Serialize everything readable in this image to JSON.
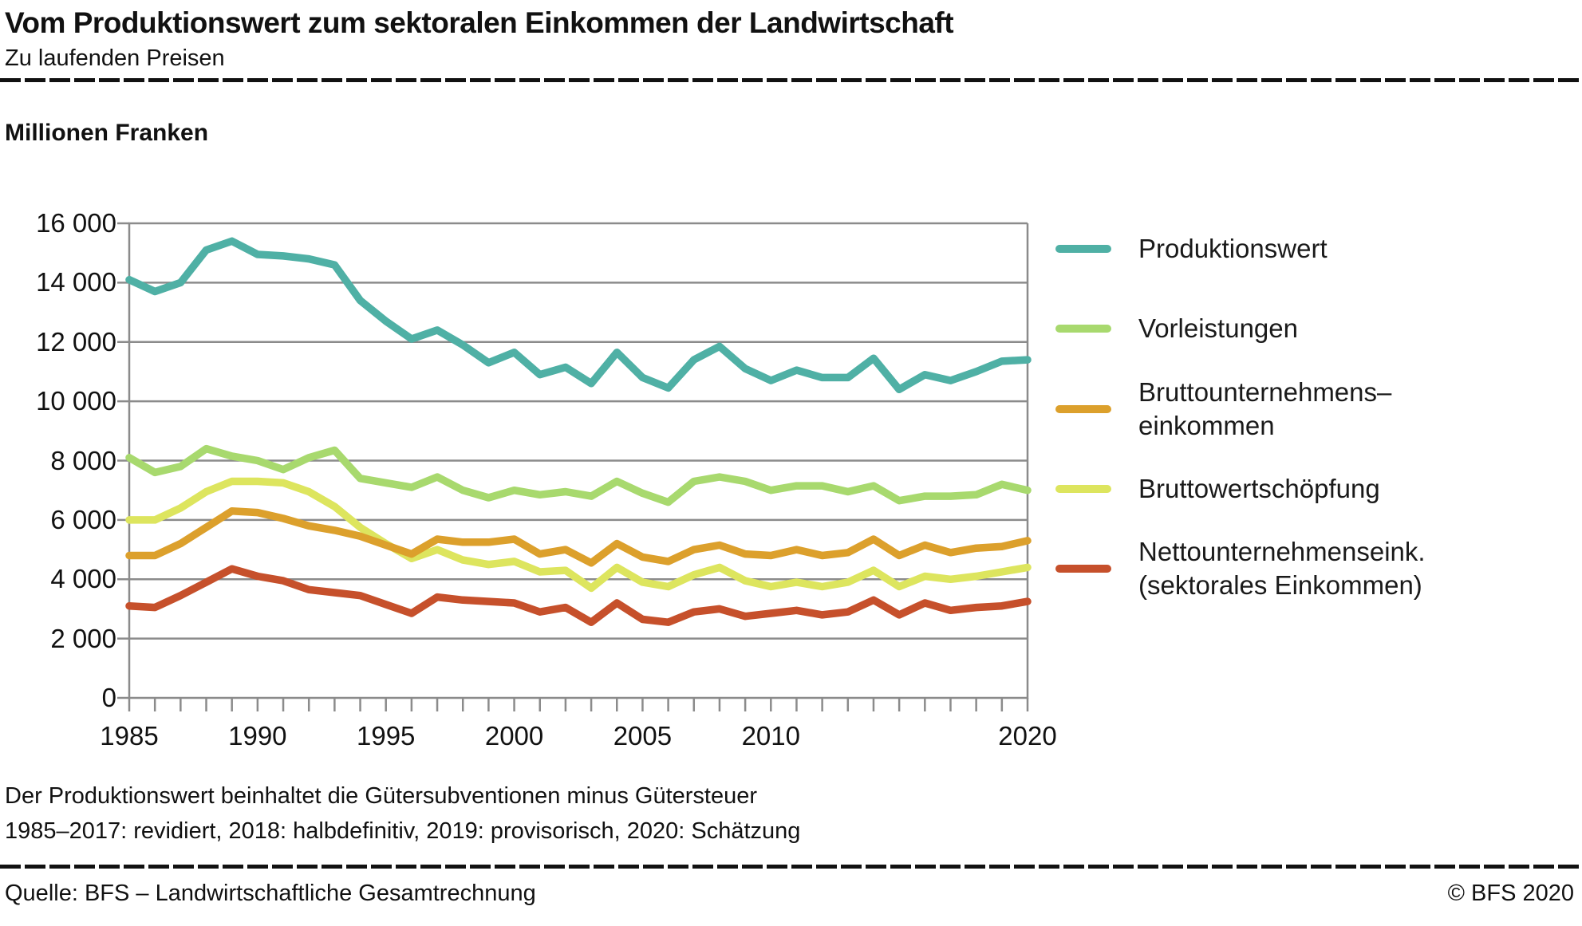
{
  "header": {
    "title": "Vom Produktionswert zum sektoralen Einkommen der Landwirtschaft",
    "subtitle": "Zu laufenden Preisen"
  },
  "unit_label": "Millionen Franken",
  "chart_data": {
    "type": "line",
    "title": "Vom Produktionswert zum sektoralen Einkommen der Landwirtschaft",
    "subtitle": "Zu laufenden Preisen",
    "ylabel": "Millionen Franken",
    "xlabel": "",
    "grid": true,
    "legend_position": "right",
    "xlim": [
      1985,
      2020
    ],
    "ylim": [
      0,
      16000
    ],
    "x": [
      1985,
      1986,
      1987,
      1988,
      1989,
      1990,
      1991,
      1992,
      1993,
      1994,
      1995,
      1996,
      1997,
      1998,
      1999,
      2000,
      2001,
      2002,
      2003,
      2004,
      2005,
      2006,
      2007,
      2008,
      2009,
      2010,
      2011,
      2012,
      2013,
      2014,
      2015,
      2016,
      2017,
      2018,
      2019,
      2020
    ],
    "x_ticks_labeled": [
      1985,
      1990,
      1995,
      2000,
      2005,
      2010,
      2020
    ],
    "x_tick_labels": [
      "1985",
      "1990",
      "1995",
      "2000",
      "2005",
      "2010",
      "2020"
    ],
    "y_ticks": [
      0,
      2000,
      4000,
      6000,
      8000,
      10000,
      12000,
      14000,
      16000
    ],
    "y_tick_labels": [
      "0",
      "2 000",
      "4 000",
      "6 000",
      "8 000",
      "10 000",
      "12 000",
      "14 000",
      "16 000"
    ],
    "series": [
      {
        "name": "Produktionswert",
        "label_lines": [
          "Produktionswert"
        ],
        "color": "#4FB0A5",
        "values": [
          14100,
          13700,
          14000,
          15100,
          15400,
          14950,
          14900,
          14800,
          14600,
          13400,
          12700,
          12100,
          12400,
          11900,
          11300,
          11650,
          10900,
          11150,
          10600,
          11650,
          10800,
          10450,
          11400,
          11850,
          11100,
          10700,
          11050,
          10800,
          10800,
          11450,
          10400,
          10900,
          10700,
          11000,
          11350,
          11400
        ]
      },
      {
        "name": "Vorleistungen",
        "label_lines": [
          "Vorleistungen"
        ],
        "color": "#A8D96E",
        "values": [
          8100,
          7600,
          7800,
          8400,
          8150,
          8000,
          7700,
          8100,
          8350,
          7400,
          7250,
          7100,
          7450,
          7000,
          6750,
          7000,
          6850,
          6950,
          6800,
          7300,
          6900,
          6600,
          7300,
          7450,
          7300,
          7000,
          7150,
          7150,
          6950,
          7150,
          6650,
          6800,
          6800,
          6850,
          7200,
          7000
        ]
      },
      {
        "name": "Bruttounternehmens–einkommen",
        "label_lines": [
          "Bruttounternehmens–",
          "einkommen"
        ],
        "color": "#DCA02C",
        "values": [
          4800,
          4800,
          5200,
          5750,
          6300,
          6250,
          6050,
          5800,
          5650,
          5450,
          5150,
          4850,
          5350,
          5250,
          5250,
          5350,
          4850,
          5000,
          4550,
          5200,
          4750,
          4600,
          5000,
          5150,
          4850,
          4800,
          5000,
          4800,
          4900,
          5350,
          4800,
          5150,
          4900,
          5050,
          5100,
          5300
        ]
      },
      {
        "name": "Bruttowertschöpfung",
        "label_lines": [
          "Bruttowertschöpfung"
        ],
        "color": "#DDE55E",
        "values": [
          6000,
          6000,
          6400,
          6950,
          7300,
          7300,
          7250,
          6950,
          6450,
          5750,
          5200,
          4700,
          5000,
          4650,
          4500,
          4600,
          4250,
          4300,
          3700,
          4400,
          3900,
          3750,
          4150,
          4400,
          3950,
          3750,
          3900,
          3750,
          3900,
          4300,
          3750,
          4100,
          4000,
          4100,
          4250,
          4400
        ]
      },
      {
        "name": "Nettounternehmenseink. (sektorales Einkommen)",
        "label_lines": [
          "Nettounternehmenseink.",
          "(sektorales Einkommen)"
        ],
        "color": "#C6502B",
        "values": [
          3100,
          3050,
          3450,
          3900,
          4350,
          4100,
          3950,
          3650,
          3550,
          3450,
          3150,
          2850,
          3400,
          3300,
          3250,
          3200,
          2900,
          3050,
          2550,
          3200,
          2650,
          2550,
          2900,
          3000,
          2750,
          2850,
          2950,
          2800,
          2900,
          3300,
          2800,
          3200,
          2950,
          3050,
          3100,
          3250
        ]
      }
    ]
  },
  "footnotes": {
    "line1": "Der Produktionswert beinhaltet die Gütersubventionen minus Gütersteuer",
    "line2": "1985–2017: revidiert, 2018: halbdefinitiv, 2019: provisorisch, 2020: Schätzung"
  },
  "source": {
    "left": "Quelle: BFS – Landwirtschaftliche Gesamtrechnung",
    "right": "© BFS 2020"
  }
}
